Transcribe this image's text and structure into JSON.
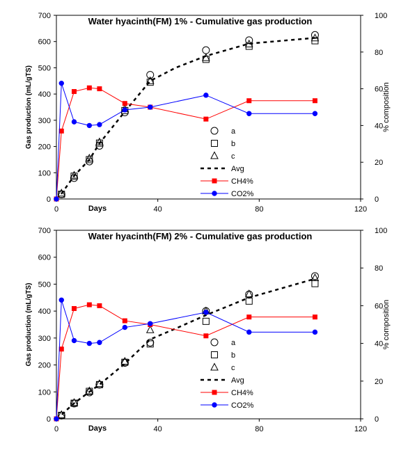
{
  "chart_data": [
    {
      "type": "scatter",
      "title": "Water hyacinth(FM) 1% - Cumulative gas production",
      "ylabel": "Gas production (mL/gTS)",
      "xlabel": "Days",
      "y2label": "% composition",
      "xlim": [
        0,
        120
      ],
      "ylim": [
        0,
        700
      ],
      "y2lim": [
        0,
        100
      ],
      "x_ticks": [
        "0",
        "40",
        "80",
        "120"
      ],
      "y_ticks": [
        "0",
        "100",
        "200",
        "300",
        "400",
        "500",
        "600",
        "700"
      ],
      "y2_ticks": [
        "0",
        "20",
        "40",
        "60",
        "80",
        "100"
      ],
      "legend_position": "center",
      "series": [
        {
          "name": "a",
          "axis": "left",
          "marker": "circle",
          "color": "#000000",
          "x": [
            2,
            7,
            13,
            17,
            27,
            37,
            59,
            76,
            102
          ],
          "y": [
            18,
            80,
            143,
            203,
            330,
            473,
            567,
            605,
            625
          ]
        },
        {
          "name": "b",
          "axis": "left",
          "marker": "square",
          "color": "#000000",
          "x": [
            2,
            7,
            13,
            17,
            27,
            37,
            59,
            76,
            102
          ],
          "y": [
            18,
            87,
            150,
            213,
            337,
            445,
            532,
            582,
            603
          ]
        },
        {
          "name": "c",
          "axis": "left",
          "marker": "triangle",
          "color": "#000000",
          "x": [
            2,
            7,
            13,
            17,
            27,
            37,
            59,
            76,
            102
          ],
          "y": [
            22,
            90,
            155,
            217,
            343,
            450,
            538,
            590,
            613
          ]
        },
        {
          "name": "Avg",
          "axis": "left",
          "line": "dashed",
          "color": "#000000",
          "x": [
            0,
            2,
            7,
            13,
            17,
            27,
            37,
            47,
            59,
            76,
            102
          ],
          "y": [
            0,
            20,
            88,
            150,
            212,
            333,
            450,
            500,
            545,
            592,
            614
          ]
        },
        {
          "name": "CH4%",
          "axis": "right",
          "marker": "square-filled",
          "color": "#ff0000",
          "x": [
            0,
            2,
            7,
            13,
            17,
            27,
            37,
            59,
            76,
            102
          ],
          "y": [
            0,
            37,
            58.5,
            60.5,
            60,
            52,
            50,
            43.5,
            53.5,
            53.5
          ]
        },
        {
          "name": "CO2%",
          "axis": "right",
          "marker": "circle-filled",
          "color": "#0000ff",
          "x": [
            0,
            2,
            7,
            13,
            17,
            27,
            37,
            59,
            76,
            102
          ],
          "y": [
            0,
            63,
            42,
            40,
            40.5,
            48.5,
            50,
            56.5,
            46.5,
            46.5
          ]
        }
      ]
    },
    {
      "type": "scatter",
      "title": "Water hyacinth(FM) 2% - Cumulative gas production",
      "ylabel": "Gas production (mL/gTS)",
      "xlabel": "Days",
      "y2label": "% composition",
      "xlim": [
        0,
        120
      ],
      "ylim": [
        0,
        700
      ],
      "y2lim": [
        0,
        100
      ],
      "x_ticks": [
        "0",
        "40",
        "80",
        "120"
      ],
      "y_ticks": [
        "0",
        "100",
        "200",
        "300",
        "400",
        "500",
        "600",
        "700"
      ],
      "y2_ticks": [
        "0",
        "20",
        "40",
        "60",
        "80",
        "100"
      ],
      "legend_position": "center",
      "series": [
        {
          "name": "a",
          "axis": "left",
          "marker": "circle",
          "color": "#000000",
          "x": [
            2,
            7,
            13,
            17,
            27,
            37,
            59,
            76,
            102
          ],
          "y": [
            12,
            57,
            98,
            127,
            208,
            283,
            400,
            462,
            530
          ]
        },
        {
          "name": "b",
          "axis": "left",
          "marker": "square",
          "color": "#000000",
          "x": [
            2,
            7,
            13,
            17,
            27,
            37,
            59,
            76,
            102
          ],
          "y": [
            13,
            58,
            102,
            127,
            210,
            278,
            362,
            437,
            502
          ]
        },
        {
          "name": "c",
          "axis": "left",
          "marker": "triangle",
          "color": "#000000",
          "x": [
            2,
            7,
            13,
            17,
            27,
            37,
            59,
            76,
            102
          ],
          "y": [
            15,
            60,
            103,
            130,
            213,
            330,
            400,
            463,
            523
          ]
        },
        {
          "name": "Avg",
          "axis": "left",
          "line": "dashed",
          "color": "#000000",
          "x": [
            0,
            2,
            7,
            13,
            17,
            27,
            37,
            47,
            59,
            76,
            102
          ],
          "y": [
            0,
            15,
            58,
            100,
            127,
            205,
            295,
            335,
            385,
            450,
            520
          ]
        },
        {
          "name": "CH4%",
          "axis": "right",
          "marker": "square-filled",
          "color": "#ff0000",
          "x": [
            0,
            2,
            7,
            13,
            17,
            27,
            37,
            59,
            76,
            102
          ],
          "y": [
            0,
            37,
            58.5,
            60.5,
            60,
            52,
            50,
            44,
            54,
            54
          ]
        },
        {
          "name": "CO2%",
          "axis": "right",
          "marker": "circle-filled",
          "color": "#0000ff",
          "x": [
            0,
            2,
            7,
            13,
            17,
            27,
            37,
            59,
            76,
            102
          ],
          "y": [
            0,
            63,
            41.5,
            40,
            40.5,
            48.5,
            50.5,
            56.5,
            46,
            46
          ]
        }
      ]
    }
  ]
}
